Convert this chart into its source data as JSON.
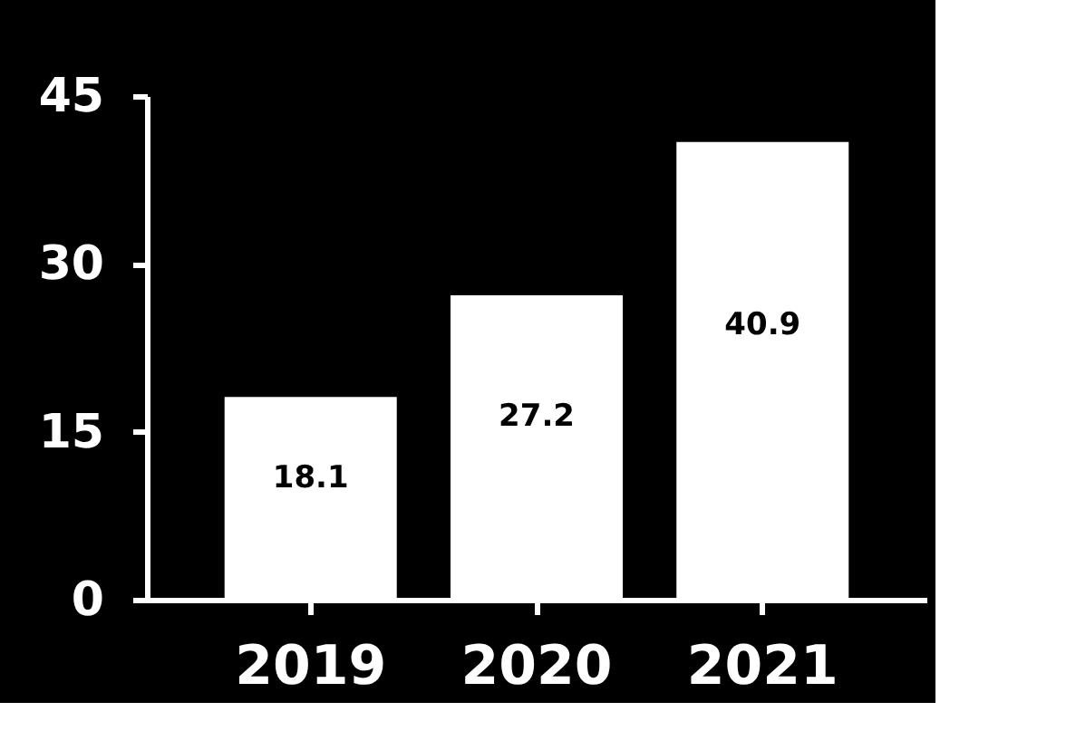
{
  "chart_data": {
    "type": "bar",
    "categories": [
      "2019",
      "2020",
      "2021"
    ],
    "values": [
      18.1,
      27.2,
      40.9
    ],
    "color": "#ffffff",
    "ylim": [
      0,
      45
    ],
    "yticks": [
      0,
      15,
      30,
      45
    ],
    "grid": false,
    "data_labels": true
  }
}
